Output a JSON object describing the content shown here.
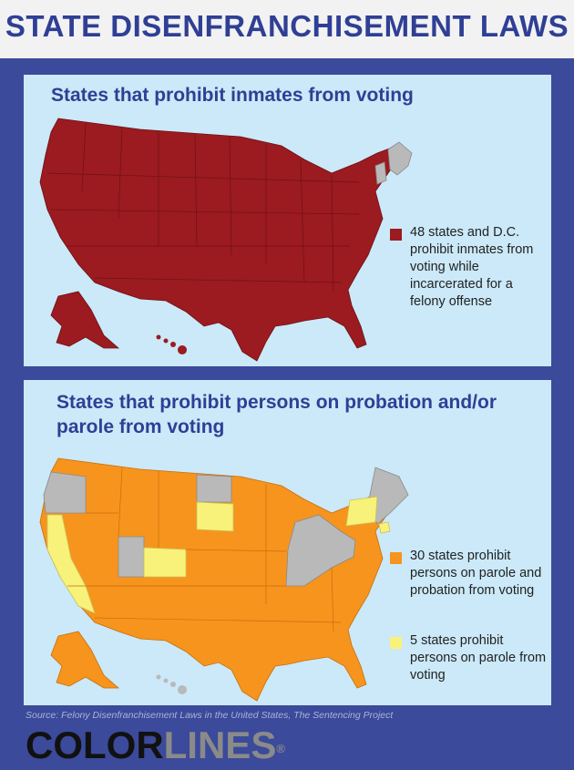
{
  "header": {
    "title": "STATE DISENFRANCHISEMENT LAWS"
  },
  "section1": {
    "title": "States that prohibit inmates from voting",
    "legend": [
      {
        "color": "#9b1b20",
        "text": "48 states and D.C. prohibit inmates from voting while incarcerated for a felony offense"
      }
    ]
  },
  "section2": {
    "title": "States that prohibit persons on probation and/or parole from voting",
    "legend": [
      {
        "color": "#f7941d",
        "text": "30 states prohibit persons on parole and probation from voting"
      },
      {
        "color": "#f8f27a",
        "text": "5 states prohibit persons on parole from voting"
      }
    ]
  },
  "colors": {
    "background": "#3b4a9a",
    "panel": "#cbe9f8",
    "title": "#2f3f95",
    "prohibit_inmates": "#9b1b20",
    "prohibit_parole_probation": "#f7941d",
    "prohibit_parole": "#f8f27a",
    "no_restriction": "#b9b9b9"
  },
  "footer": {
    "source": "Source: Felony Disenfranchisement Laws in the United States, The Sentencing Project",
    "logo_part1": "COLOR",
    "logo_part2": "LINES",
    "logo_mark": "®"
  }
}
